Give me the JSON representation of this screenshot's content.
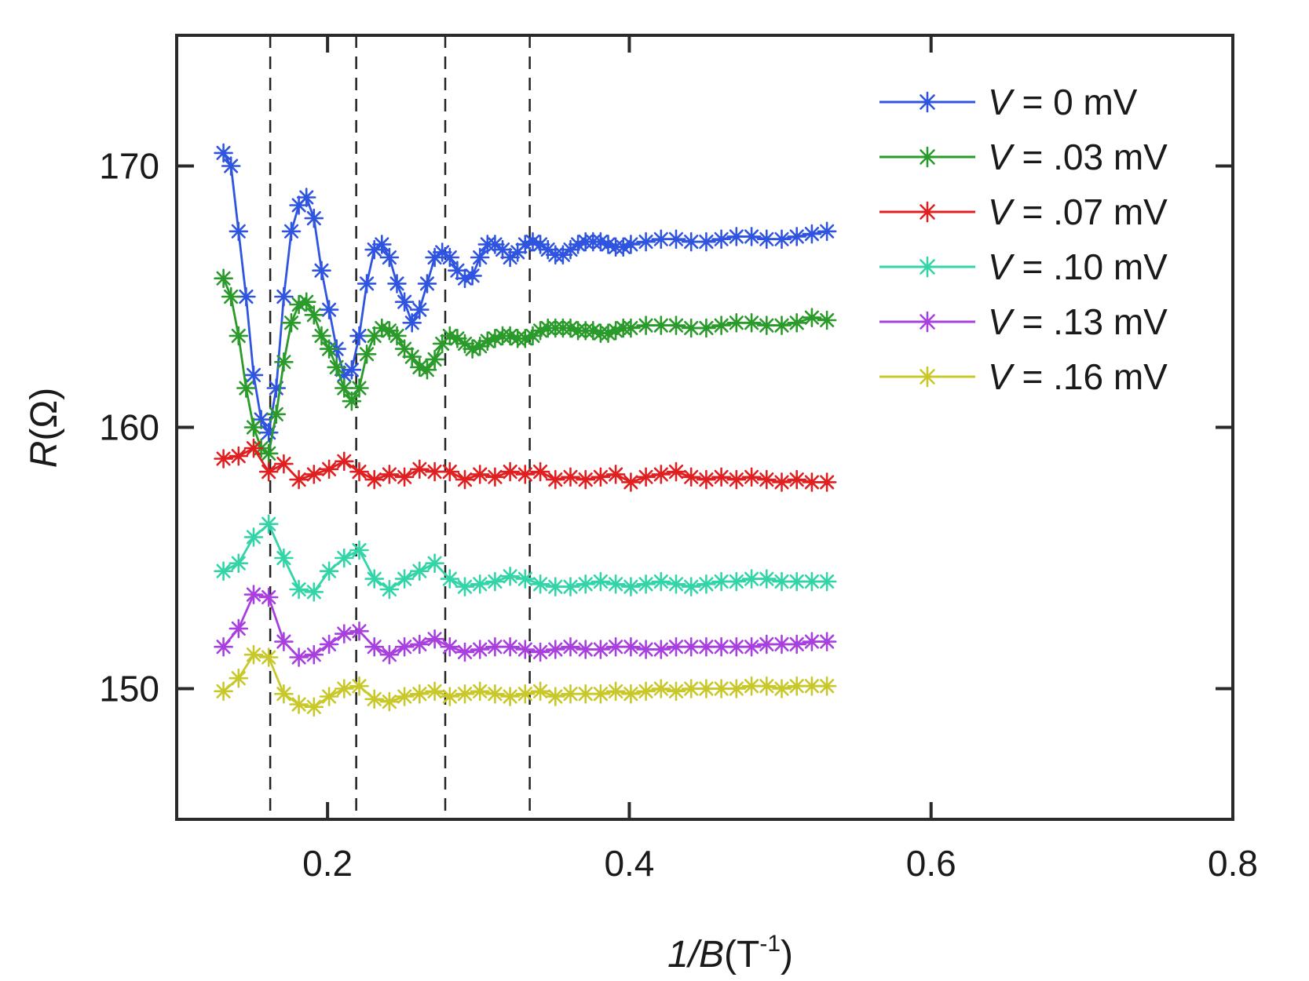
{
  "chart_data": {
    "type": "line",
    "title": "",
    "xlabel": {
      "main": "1/B",
      "unit_open": "(T",
      "unit_sup": "-1",
      "unit_close": ")"
    },
    "ylabel": {
      "main": "R",
      "unit": "(Ω)"
    },
    "xlim": [
      0.1,
      0.8
    ],
    "ylim": [
      145,
      175
    ],
    "xticks": [
      0.2,
      0.4,
      0.6,
      0.8
    ],
    "xtick_labels": [
      "0.2",
      "0.4",
      "0.6",
      "0.8"
    ],
    "yticks": [
      150,
      160,
      170
    ],
    "ytick_labels": [
      "150",
      "160",
      "170"
    ],
    "grid": false,
    "legend_position": "top-right",
    "reference_lines_x": [
      0.162,
      0.219,
      0.278,
      0.334
    ],
    "marker": "asterisk",
    "series": [
      {
        "name": "0 mV",
        "color": "#2f55e0",
        "x": [
          0.131,
          0.136,
          0.141,
          0.146,
          0.151,
          0.156,
          0.161,
          0.166,
          0.171,
          0.176,
          0.181,
          0.186,
          0.191,
          0.196,
          0.201,
          0.206,
          0.211,
          0.216,
          0.221,
          0.226,
          0.231,
          0.236,
          0.241,
          0.246,
          0.251,
          0.256,
          0.261,
          0.266,
          0.271,
          0.276,
          0.281,
          0.286,
          0.291,
          0.296,
          0.301,
          0.306,
          0.311,
          0.316,
          0.321,
          0.326,
          0.331,
          0.336,
          0.341,
          0.346,
          0.351,
          0.356,
          0.361,
          0.366,
          0.371,
          0.376,
          0.381,
          0.386,
          0.391,
          0.396,
          0.401,
          0.411,
          0.421,
          0.431,
          0.441,
          0.451,
          0.461,
          0.471,
          0.481,
          0.491,
          0.501,
          0.511,
          0.521,
          0.531
        ],
        "y": [
          170.5,
          170.0,
          167.5,
          165.0,
          162.0,
          160.3,
          159.8,
          161.5,
          165.0,
          167.5,
          168.5,
          168.8,
          168.0,
          166.0,
          164.5,
          163.0,
          162.0,
          162.2,
          163.5,
          165.5,
          166.8,
          167.0,
          166.5,
          165.5,
          164.8,
          164.0,
          164.5,
          165.5,
          166.5,
          166.7,
          166.5,
          166.0,
          165.7,
          165.8,
          166.5,
          167.0,
          167.0,
          166.8,
          166.5,
          166.7,
          167.0,
          167.1,
          167.0,
          166.8,
          166.6,
          166.6,
          166.8,
          167.0,
          167.1,
          167.1,
          167.1,
          167.0,
          166.9,
          166.9,
          167.0,
          167.1,
          167.2,
          167.2,
          167.1,
          167.1,
          167.2,
          167.3,
          167.3,
          167.2,
          167.2,
          167.3,
          167.4,
          167.5
        ]
      },
      {
        "name": ".03 mV",
        "color": "#2a9a2a",
        "x": [
          0.131,
          0.136,
          0.141,
          0.146,
          0.151,
          0.156,
          0.161,
          0.166,
          0.171,
          0.176,
          0.181,
          0.186,
          0.191,
          0.196,
          0.201,
          0.206,
          0.211,
          0.216,
          0.221,
          0.226,
          0.231,
          0.236,
          0.241,
          0.246,
          0.251,
          0.256,
          0.261,
          0.266,
          0.271,
          0.276,
          0.281,
          0.286,
          0.291,
          0.296,
          0.301,
          0.306,
          0.311,
          0.316,
          0.321,
          0.326,
          0.331,
          0.336,
          0.341,
          0.346,
          0.351,
          0.356,
          0.361,
          0.366,
          0.371,
          0.376,
          0.381,
          0.386,
          0.391,
          0.396,
          0.401,
          0.411,
          0.421,
          0.431,
          0.441,
          0.451,
          0.461,
          0.471,
          0.481,
          0.491,
          0.501,
          0.511,
          0.521,
          0.531
        ],
        "y": [
          165.7,
          165.0,
          163.5,
          161.5,
          160.0,
          159.2,
          159.0,
          160.5,
          162.5,
          164.0,
          164.7,
          164.8,
          164.3,
          163.5,
          163.0,
          162.3,
          161.5,
          161.0,
          161.5,
          162.8,
          163.5,
          163.8,
          163.7,
          163.5,
          163.0,
          162.7,
          162.3,
          162.2,
          162.6,
          163.2,
          163.5,
          163.4,
          163.2,
          163.0,
          163.1,
          163.3,
          163.4,
          163.5,
          163.5,
          163.4,
          163.4,
          163.5,
          163.7,
          163.8,
          163.8,
          163.8,
          163.8,
          163.7,
          163.7,
          163.7,
          163.6,
          163.6,
          163.7,
          163.8,
          163.8,
          163.9,
          163.9,
          163.9,
          163.8,
          163.8,
          163.9,
          164.0,
          164.0,
          163.9,
          163.9,
          164.0,
          164.2,
          164.1
        ]
      },
      {
        "name": ".07 mV",
        "color": "#e02020",
        "x": [
          0.131,
          0.141,
          0.151,
          0.161,
          0.171,
          0.181,
          0.191,
          0.201,
          0.211,
          0.221,
          0.231,
          0.241,
          0.251,
          0.261,
          0.271,
          0.281,
          0.291,
          0.301,
          0.311,
          0.321,
          0.331,
          0.341,
          0.351,
          0.361,
          0.371,
          0.381,
          0.391,
          0.401,
          0.411,
          0.421,
          0.431,
          0.441,
          0.451,
          0.461,
          0.471,
          0.481,
          0.491,
          0.501,
          0.511,
          0.521,
          0.531
        ],
        "y": [
          158.8,
          158.9,
          159.2,
          158.3,
          158.6,
          158.0,
          158.2,
          158.4,
          158.7,
          158.3,
          158.0,
          158.2,
          158.1,
          158.4,
          158.3,
          158.3,
          158.0,
          158.2,
          158.1,
          158.3,
          158.2,
          158.3,
          158.0,
          158.1,
          158.0,
          158.1,
          158.2,
          157.9,
          158.1,
          158.2,
          158.3,
          158.1,
          158.0,
          158.1,
          158.0,
          158.1,
          158.0,
          157.9,
          158.0,
          157.9,
          157.9
        ]
      },
      {
        "name": ".10 mV",
        "color": "#33d4a8",
        "x": [
          0.131,
          0.141,
          0.151,
          0.161,
          0.171,
          0.181,
          0.191,
          0.201,
          0.211,
          0.221,
          0.231,
          0.241,
          0.251,
          0.261,
          0.271,
          0.281,
          0.291,
          0.301,
          0.311,
          0.321,
          0.331,
          0.341,
          0.351,
          0.361,
          0.371,
          0.381,
          0.391,
          0.401,
          0.411,
          0.421,
          0.431,
          0.441,
          0.451,
          0.461,
          0.471,
          0.481,
          0.491,
          0.501,
          0.511,
          0.521,
          0.531
        ],
        "y": [
          154.5,
          154.8,
          155.8,
          156.3,
          155.0,
          153.8,
          153.7,
          154.5,
          155.0,
          155.3,
          154.2,
          153.8,
          154.2,
          154.5,
          154.8,
          154.2,
          153.9,
          154.0,
          154.1,
          154.3,
          154.2,
          154.0,
          153.9,
          153.9,
          154.0,
          154.1,
          154.0,
          153.9,
          154.0,
          154.1,
          154.0,
          153.9,
          154.0,
          154.1,
          154.1,
          154.2,
          154.2,
          154.1,
          154.1,
          154.1,
          154.1
        ]
      },
      {
        "name": ".13 mV",
        "color": "#a840e0",
        "x": [
          0.131,
          0.141,
          0.151,
          0.161,
          0.171,
          0.181,
          0.191,
          0.201,
          0.211,
          0.221,
          0.231,
          0.241,
          0.251,
          0.261,
          0.271,
          0.281,
          0.291,
          0.301,
          0.311,
          0.321,
          0.331,
          0.341,
          0.351,
          0.361,
          0.371,
          0.381,
          0.391,
          0.401,
          0.411,
          0.421,
          0.431,
          0.441,
          0.451,
          0.461,
          0.471,
          0.481,
          0.491,
          0.501,
          0.511,
          0.521,
          0.531
        ],
        "y": [
          151.6,
          152.3,
          153.6,
          153.5,
          151.8,
          151.2,
          151.3,
          151.7,
          152.1,
          152.2,
          151.6,
          151.3,
          151.6,
          151.7,
          151.9,
          151.6,
          151.4,
          151.5,
          151.6,
          151.6,
          151.5,
          151.4,
          151.5,
          151.6,
          151.5,
          151.5,
          151.6,
          151.6,
          151.5,
          151.5,
          151.6,
          151.6,
          151.6,
          151.6,
          151.6,
          151.6,
          151.7,
          151.7,
          151.7,
          151.8,
          151.8
        ]
      },
      {
        "name": ".16 mV",
        "color": "#c8c82a",
        "x": [
          0.131,
          0.141,
          0.151,
          0.161,
          0.171,
          0.181,
          0.191,
          0.201,
          0.211,
          0.221,
          0.231,
          0.241,
          0.251,
          0.261,
          0.271,
          0.281,
          0.291,
          0.301,
          0.311,
          0.321,
          0.331,
          0.341,
          0.351,
          0.361,
          0.371,
          0.381,
          0.391,
          0.401,
          0.411,
          0.421,
          0.431,
          0.441,
          0.451,
          0.461,
          0.471,
          0.481,
          0.491,
          0.501,
          0.511,
          0.521,
          0.531
        ],
        "y": [
          149.9,
          150.4,
          151.3,
          151.2,
          149.8,
          149.4,
          149.3,
          149.7,
          150.0,
          150.1,
          149.6,
          149.5,
          149.7,
          149.8,
          149.9,
          149.7,
          149.8,
          149.9,
          149.8,
          149.7,
          149.8,
          149.9,
          149.7,
          149.8,
          149.8,
          149.8,
          149.9,
          149.8,
          149.9,
          150.0,
          149.9,
          150.0,
          150.0,
          150.0,
          150.0,
          150.1,
          150.1,
          150.0,
          150.1,
          150.1,
          150.1
        ]
      }
    ]
  },
  "legend": {
    "entries": [
      {
        "var": "V",
        "rest": " = 0 mV"
      },
      {
        "var": "V",
        "rest": " = .03 mV"
      },
      {
        "var": "V",
        "rest": " = .07 mV"
      },
      {
        "var": "V",
        "rest": " = .10 mV"
      },
      {
        "var": "V",
        "rest": " = .13 mV"
      },
      {
        "var": "V",
        "rest": " = .16 mV"
      }
    ]
  }
}
